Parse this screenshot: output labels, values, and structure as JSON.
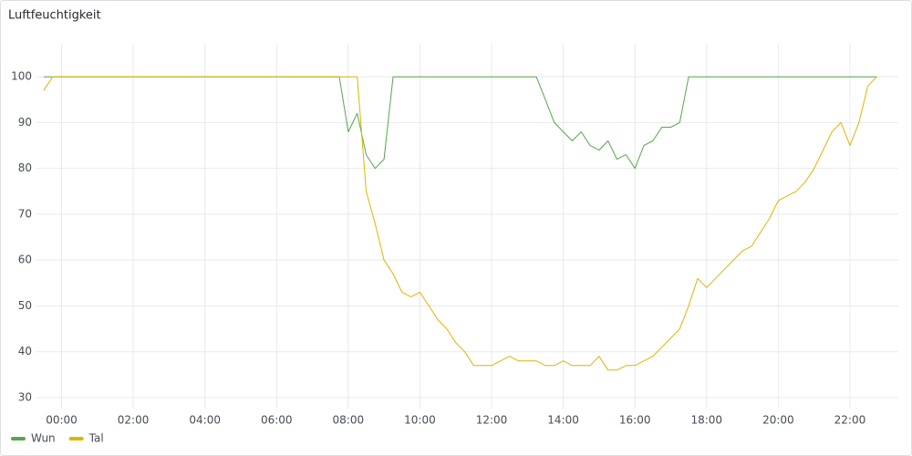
{
  "chart_data": {
    "type": "line",
    "title": "Luftfeuchtigkeit",
    "x": [
      -0.5,
      -0.25,
      0,
      0.25,
      0.5,
      0.75,
      1,
      1.25,
      1.5,
      1.75,
      2,
      2.25,
      2.5,
      2.75,
      3,
      3.25,
      3.5,
      3.75,
      4,
      4.25,
      4.5,
      4.75,
      5,
      5.25,
      5.5,
      5.75,
      6,
      6.25,
      6.5,
      6.75,
      7,
      7.25,
      7.5,
      7.75,
      8,
      8.25,
      8.5,
      8.75,
      9,
      9.25,
      9.5,
      9.75,
      10,
      10.25,
      10.5,
      10.75,
      11,
      11.25,
      11.5,
      11.75,
      12,
      12.25,
      12.5,
      12.75,
      13,
      13.25,
      13.5,
      13.75,
      14,
      14.25,
      14.5,
      14.75,
      15,
      15.25,
      15.5,
      15.75,
      16,
      16.25,
      16.5,
      16.75,
      17,
      17.25,
      17.5,
      17.75,
      18,
      18.25,
      18.5,
      18.75,
      19,
      19.25,
      19.5,
      19.75,
      20,
      20.25,
      20.5,
      20.75,
      21,
      21.25,
      21.5,
      21.75,
      22,
      22.25,
      22.5,
      22.75
    ],
    "series": [
      {
        "name": "Wun",
        "color": "#56a64b",
        "values": [
          100,
          100,
          100,
          100,
          100,
          100,
          100,
          100,
          100,
          100,
          100,
          100,
          100,
          100,
          100,
          100,
          100,
          100,
          100,
          100,
          100,
          100,
          100,
          100,
          100,
          100,
          100,
          100,
          100,
          100,
          100,
          100,
          100,
          100,
          88,
          92,
          83,
          80,
          82,
          100,
          100,
          100,
          100,
          100,
          100,
          100,
          100,
          100,
          100,
          100,
          100,
          100,
          100,
          100,
          100,
          100,
          95,
          90,
          88,
          86,
          88,
          85,
          84,
          86,
          82,
          83,
          80,
          85,
          86,
          89,
          89,
          90,
          100,
          100,
          100,
          100,
          100,
          100,
          100,
          100,
          100,
          100,
          100,
          100,
          100,
          100,
          100,
          100,
          100,
          100,
          100,
          100,
          100,
          100
        ]
      },
      {
        "name": "Tal",
        "color": "#e0b400",
        "values": [
          97,
          100,
          100,
          100,
          100,
          100,
          100,
          100,
          100,
          100,
          100,
          100,
          100,
          100,
          100,
          100,
          100,
          100,
          100,
          100,
          100,
          100,
          100,
          100,
          100,
          100,
          100,
          100,
          100,
          100,
          100,
          100,
          100,
          100,
          100,
          100,
          75,
          68,
          60,
          57,
          53,
          52,
          53,
          50,
          47,
          45,
          42,
          40,
          37,
          37,
          37,
          38,
          39,
          38,
          38,
          38,
          37,
          37,
          38,
          37,
          37,
          37,
          39,
          36,
          36,
          37,
          37,
          38,
          39,
          41,
          43,
          45,
          50,
          56,
          54,
          56,
          58,
          60,
          62,
          63,
          66,
          69,
          73,
          74,
          75,
          77,
          80,
          84,
          88,
          90,
          85,
          90,
          98,
          100
        ]
      }
    ],
    "xlim": [
      -0.7,
      23.35
    ],
    "xticks": [
      {
        "value": 0,
        "label": "00:00"
      },
      {
        "value": 2,
        "label": "02:00"
      },
      {
        "value": 4,
        "label": "04:00"
      },
      {
        "value": 6,
        "label": "06:00"
      },
      {
        "value": 8,
        "label": "08:00"
      },
      {
        "value": 10,
        "label": "10:00"
      },
      {
        "value": 12,
        "label": "12:00"
      },
      {
        "value": 14,
        "label": "14:00"
      },
      {
        "value": 16,
        "label": "16:00"
      },
      {
        "value": 18,
        "label": "18:00"
      },
      {
        "value": 20,
        "label": "20:00"
      },
      {
        "value": 22,
        "label": "22:00"
      }
    ],
    "ylim": [
      27.6,
      107.2
    ],
    "yticks": [
      30,
      40,
      50,
      60,
      70,
      80,
      90,
      100
    ],
    "grid": true,
    "legend": "bottom-left"
  }
}
